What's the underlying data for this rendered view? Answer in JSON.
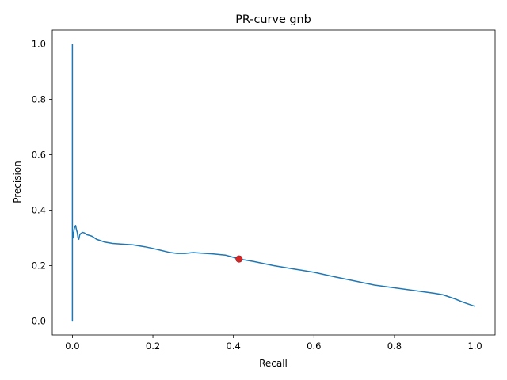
{
  "chart_data": {
    "type": "line",
    "title": "PR-curve gnb",
    "xlabel": "Recall",
    "ylabel": "Precision",
    "xlim": [
      -0.05,
      1.05
    ],
    "ylim": [
      -0.05,
      1.05
    ],
    "xticks": [
      0.0,
      0.2,
      0.4,
      0.6,
      0.8,
      1.0
    ],
    "yticks": [
      0.0,
      0.2,
      0.4,
      0.6,
      0.8,
      1.0
    ],
    "xtick_labels": [
      "0.0",
      "0.2",
      "0.4",
      "0.6",
      "0.8",
      "1.0"
    ],
    "ytick_labels": [
      "0.0",
      "0.2",
      "0.4",
      "0.6",
      "0.8",
      "1.0"
    ],
    "grid": false,
    "series": [
      {
        "color": "#1f77b4",
        "x": [
          0.0,
          0.0,
          0.0,
          0.0,
          0.0,
          0.0,
          0.0,
          0.0,
          0.002,
          0.003,
          0.004,
          0.006,
          0.008,
          0.01,
          0.012,
          0.014,
          0.016,
          0.018,
          0.02,
          0.025,
          0.03,
          0.035,
          0.04,
          0.045,
          0.05,
          0.055,
          0.06,
          0.07,
          0.08,
          0.1,
          0.12,
          0.15,
          0.18,
          0.2,
          0.22,
          0.24,
          0.26,
          0.28,
          0.3,
          0.32,
          0.35,
          0.38,
          0.4,
          0.414,
          0.45,
          0.5,
          0.55,
          0.6,
          0.65,
          0.7,
          0.75,
          0.8,
          0.85,
          0.9,
          0.92,
          0.95,
          0.97,
          1.0
        ],
        "y": [
          1.0,
          0.0,
          0.5,
          0.25,
          0.4,
          0.23,
          0.27,
          0.3,
          0.32,
          0.3,
          0.33,
          0.34,
          0.345,
          0.33,
          0.32,
          0.3,
          0.295,
          0.31,
          0.315,
          0.32,
          0.318,
          0.312,
          0.31,
          0.308,
          0.305,
          0.3,
          0.295,
          0.29,
          0.285,
          0.28,
          0.278,
          0.275,
          0.268,
          0.262,
          0.255,
          0.248,
          0.244,
          0.244,
          0.247,
          0.245,
          0.242,
          0.238,
          0.23,
          0.224,
          0.215,
          0.2,
          0.188,
          0.176,
          0.16,
          0.145,
          0.13,
          0.12,
          0.11,
          0.1,
          0.095,
          0.08,
          0.068,
          0.053
        ]
      }
    ],
    "marker": {
      "x": 0.414,
      "y": 0.224,
      "color": "#d62728"
    }
  }
}
